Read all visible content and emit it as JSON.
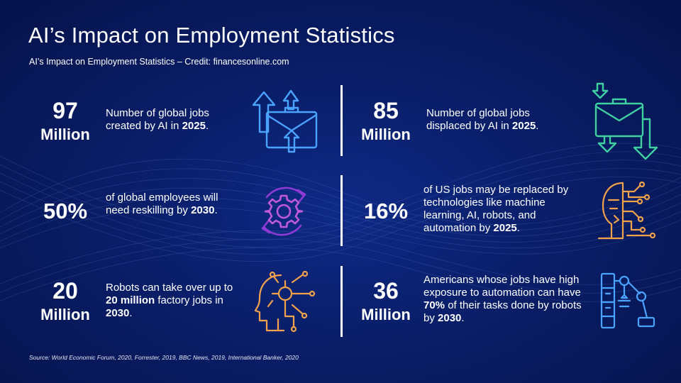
{
  "header": {
    "title": "AI’s Impact on Employment Statistics",
    "subtitle": "AI’s Impact on Employment Statistics – Credit: financesonline.com"
  },
  "stats": [
    {
      "value": "97",
      "unit": "Million",
      "text_before": "Number of global jobs created by AI in ",
      "highlight": "2025",
      "text_after": ".",
      "icon": "briefcase-arrows-up-icon"
    },
    {
      "value": "85",
      "unit": "Million",
      "text_before": "Number of global jobs displaced by AI in ",
      "highlight": "2025",
      "text_after": ".",
      "icon": "briefcase-arrows-down-icon"
    },
    {
      "value": "50%",
      "text_before": "of global employees will need reskilling by ",
      "highlight": "2030",
      "text_after": ".",
      "icon": "gear-cycle-icon"
    },
    {
      "value": "16%",
      "text_before": "of US jobs may be replaced by technologies like machine learning, AI, robots, and automation by ",
      "highlight": "2025",
      "text_after": ".",
      "icon": "robot-face-icon"
    },
    {
      "value": "20",
      "unit": "Million",
      "text_before": "Robots can take over up to ",
      "highlight": "20 million",
      "text_mid": " factory jobs in ",
      "highlight2": "2030",
      "text_after": ".",
      "icon": "ai-head-circuit-icon"
    },
    {
      "value": "36",
      "unit": "Million",
      "text_before": "Americans whose jobs have high exposure to automation can have ",
      "highlight": "70%",
      "text_mid": " of their tasks done by robots by ",
      "highlight2": "2030",
      "text_after": ".",
      "icon": "robotic-arm-icon"
    }
  ],
  "footer": {
    "source": "Source: World Economic Forum, 2020, Forrester, 2019, BBC News, 2019, International Banker, 2020"
  },
  "colors": {
    "background": "#0a1f6b",
    "icon_blue": "#4aa3ff",
    "icon_orange": "#f2a24a",
    "icon_green": "#3fd0a0",
    "icon_purple": "#8f3ad6",
    "icon_violet": "#c05ad8"
  }
}
